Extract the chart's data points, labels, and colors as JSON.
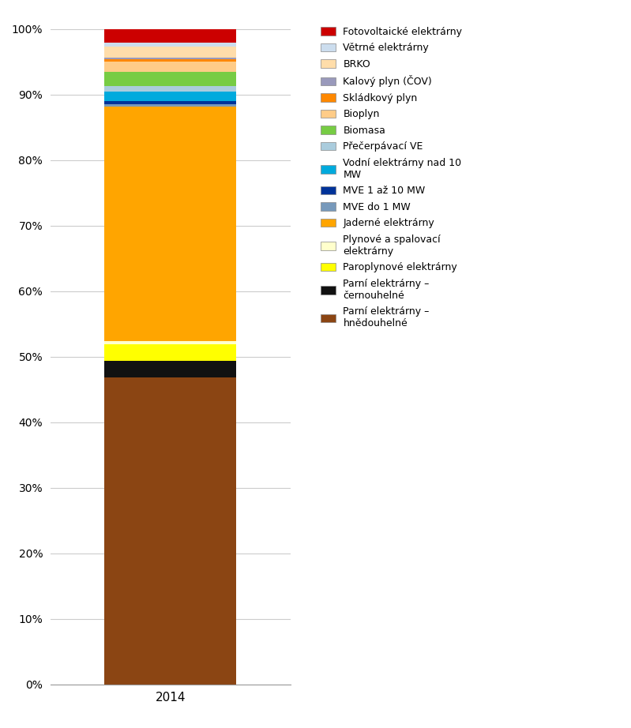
{
  "categories": [
    "2014"
  ],
  "segments": [
    {
      "label": "Parní elektrárny –\nhnědouhelné",
      "value": 46.78,
      "color": "#8B4513"
    },
    {
      "label": "Parní elektrárny –\nčernouhelné",
      "value": 2.58,
      "color": "#111111"
    },
    {
      "label": "Paroplynové elektrárny",
      "value": 2.55,
      "color": "#FFFF00"
    },
    {
      "label": "Plynové a spalovací\nelektrárny",
      "value": 0.45,
      "color": "#FFFFCC"
    },
    {
      "label": "Jaderné elektrárny",
      "value": 35.8,
      "color": "#FFA500"
    },
    {
      "label": "MVE do 1 MW",
      "value": 0.35,
      "color": "#7799BB"
    },
    {
      "label": "MVE 1 až 10 MW",
      "value": 0.45,
      "color": "#003399"
    },
    {
      "label": "Vodní elektrárny nad 10\nMW",
      "value": 1.5,
      "color": "#00AADD"
    },
    {
      "label": "Přečerpávací VE",
      "value": 0.8,
      "color": "#AACCDD"
    },
    {
      "label": "Biomasa",
      "value": 2.2,
      "color": "#77CC44"
    },
    {
      "label": "Bioplyn",
      "value": 1.6,
      "color": "#FFCC88"
    },
    {
      "label": "Skládkový plyn",
      "value": 0.3,
      "color": "#FF8800"
    },
    {
      "label": "Kalový plyn (ČOV)",
      "value": 0.3,
      "color": "#9999BB"
    },
    {
      "label": "BRKO",
      "value": 1.7,
      "color": "#FFDDAA"
    },
    {
      "label": "Větrné elektrárny",
      "value": 0.6,
      "color": "#CCDDEE"
    },
    {
      "label": "Fotovoltaické elektrárny",
      "value": 2.04,
      "color": "#CC0000"
    }
  ],
  "background_color": "#FFFFFF",
  "grid_color": "#CCCCCC",
  "tick_fontsize": 10,
  "legend_fontsize": 9,
  "bar_width": 0.55,
  "xlim_left": -0.55,
  "xlim_right": 0.55
}
